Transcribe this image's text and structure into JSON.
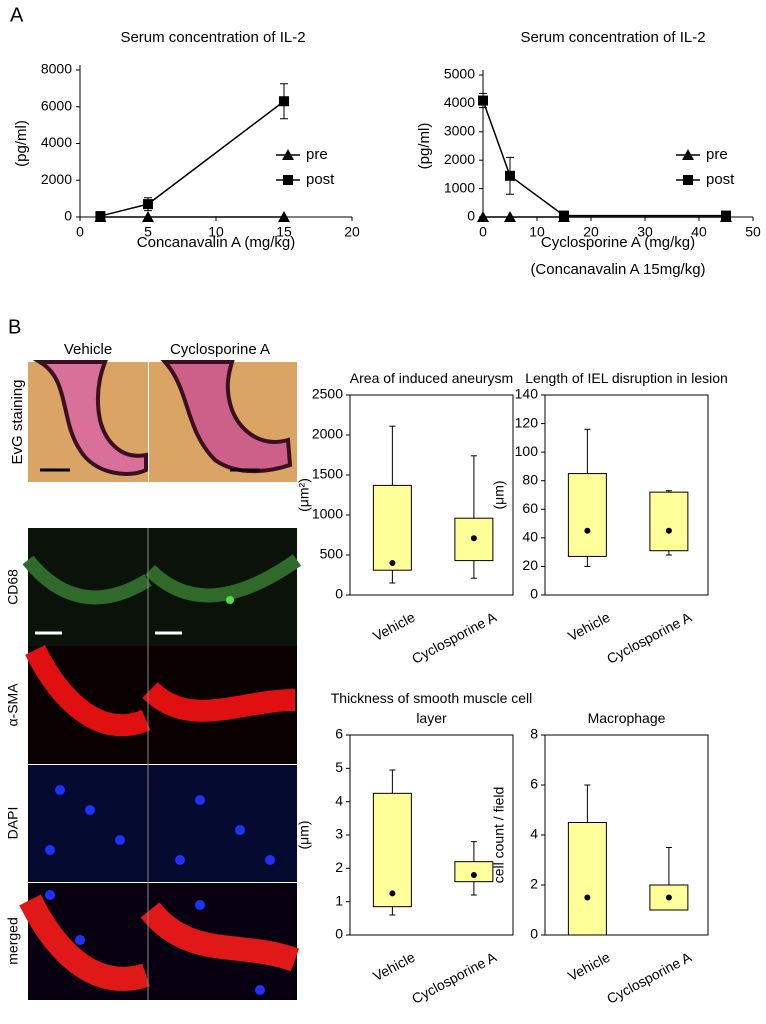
{
  "figure": {
    "panel_a": "A",
    "panel_b": "B",
    "groups": [
      "Vehicle",
      "Cyclosporine A"
    ],
    "stains": [
      "EvG staining",
      "CD68",
      "α-SMA",
      "DAPI",
      "merged"
    ]
  },
  "chart_data": [
    {
      "type": "line",
      "title": "Serum concentration of IL-2",
      "x_label": "Concanavalin A (mg/kg)",
      "y_label": "(pg/ml)",
      "x": [
        1.5,
        5,
        15
      ],
      "xlim": [
        0,
        20
      ],
      "xticks": [
        0,
        5,
        10,
        15,
        20
      ],
      "ylim": [
        0,
        8000
      ],
      "yticks": [
        0,
        2000,
        4000,
        6000,
        8000
      ],
      "legend": "right",
      "series": [
        {
          "name": "pre",
          "color": "#000000",
          "marker": "triangle",
          "values": [
            0,
            0,
            0
          ],
          "errors": [
            null,
            null,
            null
          ]
        },
        {
          "name": "post",
          "color": "#000000",
          "marker": "square",
          "values": [
            50,
            700,
            6300
          ],
          "errors": [
            null,
            350,
            950
          ]
        }
      ]
    },
    {
      "type": "line",
      "title": "Serum concentration of IL-2",
      "x_label": "Cyclosporine A (mg/kg)",
      "subtitle": "(Concanavalin A  15mg/kg)",
      "y_label": "(pg/ml)",
      "x": [
        0,
        5,
        15,
        45
      ],
      "xlim": [
        0,
        50
      ],
      "xticks": [
        0,
        10,
        20,
        30,
        40,
        50
      ],
      "ylim": [
        0,
        5000
      ],
      "yticks": [
        0,
        1000,
        2000,
        3000,
        4000,
        5000
      ],
      "legend": "right",
      "series": [
        {
          "name": "pre",
          "color": "#000000",
          "marker": "triangle",
          "values": [
            0,
            0,
            0,
            0
          ],
          "errors": [
            null,
            null,
            null,
            null
          ]
        },
        {
          "name": "post",
          "color": "#000000",
          "marker": "square",
          "values": [
            4100,
            1450,
            50,
            50
          ],
          "errors": [
            250,
            650,
            null,
            null
          ]
        }
      ]
    },
    {
      "type": "box",
      "title": "Area of induced aneurysm",
      "y_label": "(μm²)",
      "categories": [
        "Vehicle",
        "Cyclosporine A"
      ],
      "color": "#ffff99",
      "ylim": [
        0,
        2500
      ],
      "yticks": [
        0,
        500,
        1000,
        1500,
        2000,
        2500
      ],
      "boxes": [
        {
          "min": 150,
          "q1": 310,
          "q3": 1370,
          "max": 2110,
          "mean": 400
        },
        {
          "min": 210,
          "q1": 430,
          "q3": 960,
          "max": 1740,
          "mean": 710
        }
      ]
    },
    {
      "type": "box",
      "title": "Length of IEL disruption in lesion",
      "y_label": "(μm)",
      "categories": [
        "Vehicle",
        "Cyclosporine A"
      ],
      "color": "#ffff99",
      "ylim": [
        0,
        140
      ],
      "yticks": [
        0,
        20,
        40,
        60,
        80,
        100,
        120,
        140
      ],
      "boxes": [
        {
          "min": 20,
          "q1": 27,
          "q3": 85,
          "max": 116,
          "mean": 45
        },
        {
          "min": 28,
          "q1": 31,
          "q3": 72,
          "max": 73,
          "mean": 45
        }
      ]
    },
    {
      "type": "box",
      "title": "Thickness of smooth muscle cell layer",
      "y_label": "(μm)",
      "categories": [
        "Vehicle",
        "Cyclosporine A"
      ],
      "color": "#ffff99",
      "ylim": [
        0,
        6
      ],
      "yticks": [
        0,
        1,
        2,
        3,
        4,
        5,
        6
      ],
      "boxes": [
        {
          "min": 0.6,
          "q1": 0.85,
          "q3": 4.25,
          "max": 4.95,
          "mean": 1.25
        },
        {
          "min": 1.2,
          "q1": 1.6,
          "q3": 2.2,
          "max": 2.8,
          "mean": 1.8
        }
      ]
    },
    {
      "type": "box",
      "title": "Macrophage",
      "y_label": "cell count / field",
      "categories": [
        "Vehicle",
        "Cyclosporine A"
      ],
      "color": "#ffff99",
      "ylim": [
        0,
        8
      ],
      "yticks": [
        0,
        2,
        4,
        6,
        8
      ],
      "boxes": [
        {
          "min": 0,
          "q1": 0,
          "q3": 4.5,
          "max": 6,
          "mean": 1.5
        },
        {
          "min": 1,
          "q1": 1,
          "q3": 2,
          "max": 3.5,
          "mean": 1.5
        }
      ]
    }
  ]
}
